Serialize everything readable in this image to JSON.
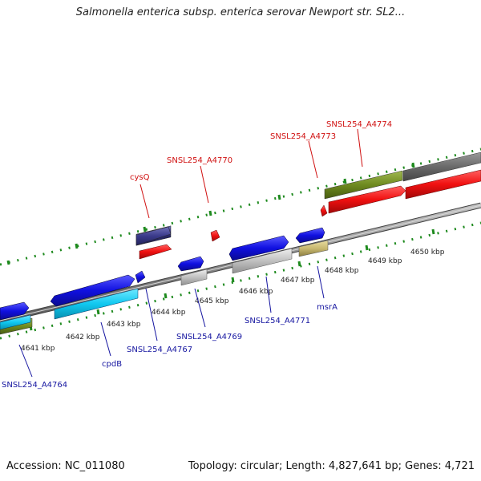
{
  "title": "Salmonella enterica subsp. enterica serovar Newport str. SL2...",
  "footer": {
    "accession": "Accession: NC_011080",
    "summary": "Topology: circular; Length: 4,827,641 bp; Genes: 4,721"
  },
  "colors": {
    "backbone": "#8a8a8a",
    "blue_gene": "#1010e0",
    "red_gene": "#f01010",
    "purple_gene": "#3a3a8a",
    "cyan_gene": "#10c8f0",
    "olive_gene": "#6e8a20",
    "gray_gene": "#c0c0c0",
    "darkgray_gene": "#6a6a6a",
    "khaki_gene": "#c8b870",
    "tick_green": "#1e8a1e",
    "label_blue": "#1515a0",
    "label_red": "#d01010"
  },
  "ticks": [
    "4641 kbp",
    "4642 kbp",
    "4643 kbp",
    "4644 kbp",
    "4645 kbp",
    "4646 kbp",
    "4647 kbp",
    "4648 kbp",
    "4649 kbp",
    "4650 kbp"
  ],
  "gene_labels": {
    "blue": [
      "SNSL254_A4764",
      "cpdB",
      "SNSL254_A4767",
      "SNSL254_A4769",
      "SNSL254_A4771",
      "msrA"
    ],
    "red": [
      "cysQ",
      "SNSL254_A4770",
      "SNSL254_A4773",
      "SNSL254_A4774"
    ]
  }
}
